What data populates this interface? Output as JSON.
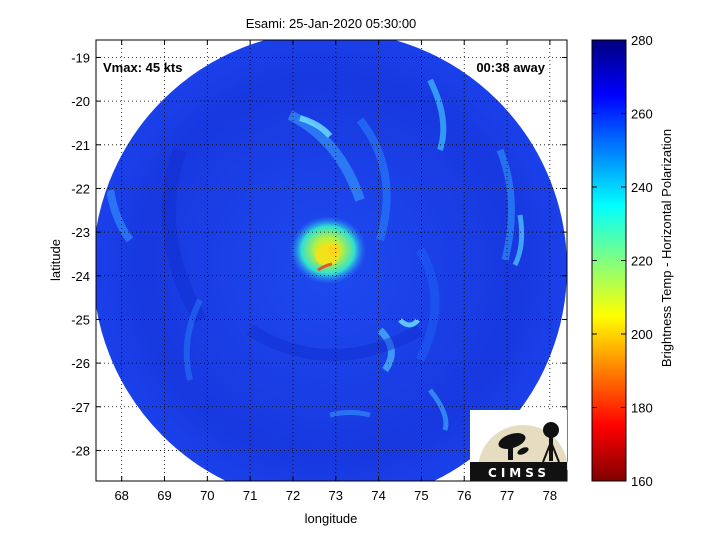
{
  "title": "Esami: 25-Jan-2020 05:30:00",
  "annotations": {
    "vmax": "Vmax: 45 kts",
    "time_away": "00:38 away"
  },
  "axes": {
    "xlabel": "longitude",
    "ylabel": "latitude",
    "x_ticks": [
      68,
      69,
      70,
      71,
      72,
      73,
      74,
      75,
      76,
      77,
      78
    ],
    "y_ticks": [
      -19,
      -20,
      -21,
      -22,
      -23,
      -24,
      -25,
      -26,
      -27,
      -28
    ],
    "xlim": [
      67.4,
      78.4
    ],
    "ylim": [
      -28.7,
      -18.6
    ],
    "grid": true
  },
  "colorbar": {
    "label": "Brightness Temp - Horizontal Polarization",
    "ticks": [
      160,
      180,
      200,
      220,
      240,
      260,
      280
    ],
    "range": [
      160,
      280
    ],
    "colormap": "jet"
  },
  "storm_center": {
    "lon": 72.8,
    "lat": -23.7
  },
  "logo": {
    "text": "CIMSS"
  },
  "colors": {
    "background_scene": "#1436e0",
    "convection_core": "#f0e020"
  }
}
